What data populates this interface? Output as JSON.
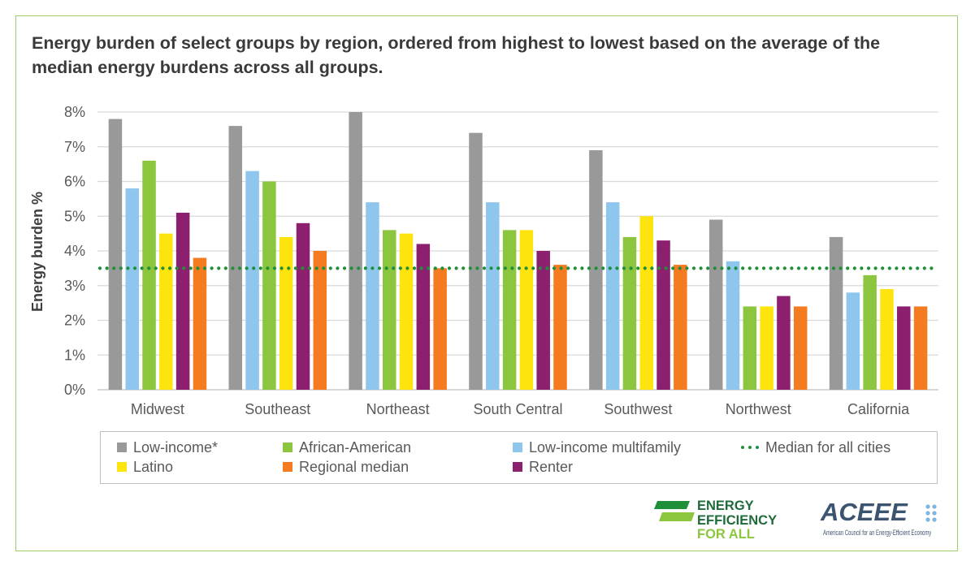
{
  "title": "Energy burden of select groups by region, ordered from highest to lowest based on the average of the median energy burdens across all groups.",
  "colors": {
    "frame": "#9ccc6a",
    "grid": "#d9d9d9",
    "median_line": "#1f8f3a"
  },
  "chart_data": {
    "type": "bar",
    "title": "Energy burden of select groups by region, ordered from highest to lowest based on the average of the median energy burdens across all groups.",
    "xlabel": "",
    "ylabel": "Energy burden %",
    "ylim": [
      0,
      8
    ],
    "yticks": [
      "0%",
      "1%",
      "2%",
      "3%",
      "4%",
      "5%",
      "6%",
      "7%",
      "8%"
    ],
    "grid": true,
    "legend_position": "bottom",
    "categories": [
      "Midwest",
      "Southeast",
      "Northeast",
      "South Central",
      "Southwest",
      "Northwest",
      "California"
    ],
    "series": [
      {
        "name": "Low-income*",
        "color": "#999999",
        "values": [
          7.8,
          7.6,
          8.0,
          7.4,
          6.9,
          4.9,
          4.4
        ]
      },
      {
        "name": "Low-income multifamily",
        "color": "#8ec6ed",
        "values": [
          5.8,
          6.3,
          5.4,
          5.4,
          5.4,
          3.7,
          2.8
        ]
      },
      {
        "name": "African-American",
        "color": "#8cc63f",
        "values": [
          6.6,
          6.0,
          4.6,
          4.6,
          4.4,
          2.4,
          3.3
        ]
      },
      {
        "name": "Latino",
        "color": "#fde40e",
        "values": [
          4.5,
          4.4,
          4.5,
          4.6,
          5.0,
          2.4,
          2.9
        ]
      },
      {
        "name": "Renter",
        "color": "#8d1f6f",
        "values": [
          5.1,
          4.8,
          4.2,
          4.0,
          4.3,
          2.7,
          2.4
        ]
      },
      {
        "name": "Regional median",
        "color": "#f47b20",
        "values": [
          3.8,
          4.0,
          3.5,
          3.6,
          3.6,
          2.4,
          2.4
        ]
      }
    ],
    "reference_line": {
      "name": "Median for all cities",
      "value": 3.5,
      "color": "#1f8f3a",
      "style": "dotted"
    }
  },
  "legend": [
    {
      "label": "Low-income*",
      "color": "#999999",
      "kind": "box"
    },
    {
      "label": "African-American",
      "color": "#8cc63f",
      "kind": "box"
    },
    {
      "label": "Low-income multifamily",
      "color": "#8ec6ed",
      "kind": "box"
    },
    {
      "label": "Median for all cities",
      "color": "#1f8f3a",
      "kind": "dots"
    },
    {
      "label": "Latino",
      "color": "#fde40e",
      "kind": "box"
    },
    {
      "label": "Regional median",
      "color": "#f47b20",
      "kind": "box"
    },
    {
      "label": "Renter",
      "color": "#8d1f6f",
      "kind": "box"
    }
  ],
  "logos": {
    "eefa": {
      "lines": [
        "ENERGY",
        "EFFICIENCY",
        "FOR ALL"
      ],
      "colors": [
        "#1f6b3a",
        "#1f6b3a",
        "#8cc63f"
      ]
    },
    "aceee": {
      "word": "ACEEE",
      "subtitle": "American Council for an Energy-Efficient Economy",
      "color": "#3d5470",
      "dot_color": "#7fb6de"
    }
  }
}
